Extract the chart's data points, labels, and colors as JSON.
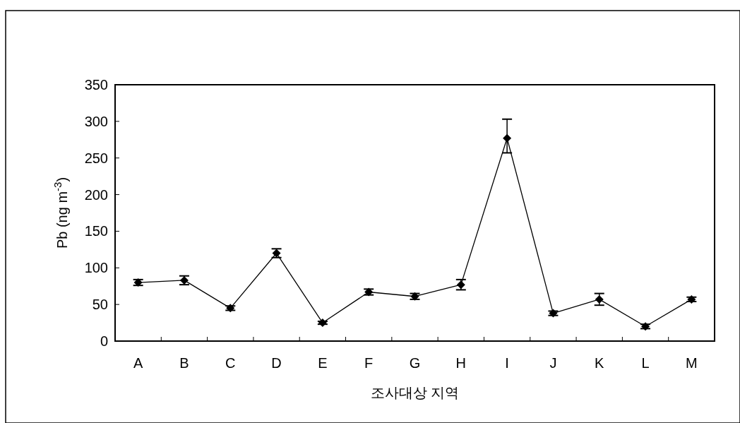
{
  "chart_data": {
    "type": "line",
    "xlabel": "조사대상 지역",
    "ylabel": "Pb (ng m$^{-3}$)",
    "categories": [
      "A",
      "B",
      "C",
      "D",
      "E",
      "F",
      "G",
      "H",
      "I",
      "J",
      "K",
      "L",
      "M"
    ],
    "series": [
      {
        "color": "#000000",
        "values": [
          80,
          83,
          45,
          120,
          25,
          67,
          61,
          77,
          277,
          38,
          57,
          20,
          57
        ],
        "errors": [
          4,
          6,
          3,
          6,
          2,
          4,
          4,
          7,
          [
            257,
            303
          ],
          3,
          8,
          3,
          3
        ]
      }
    ],
    "ylim": [
      0,
      350
    ],
    "yticks": [
      0,
      50,
      100,
      150,
      200,
      250,
      300,
      350
    ],
    "grid": false,
    "marker": "diamond",
    "line_style": "solid"
  }
}
